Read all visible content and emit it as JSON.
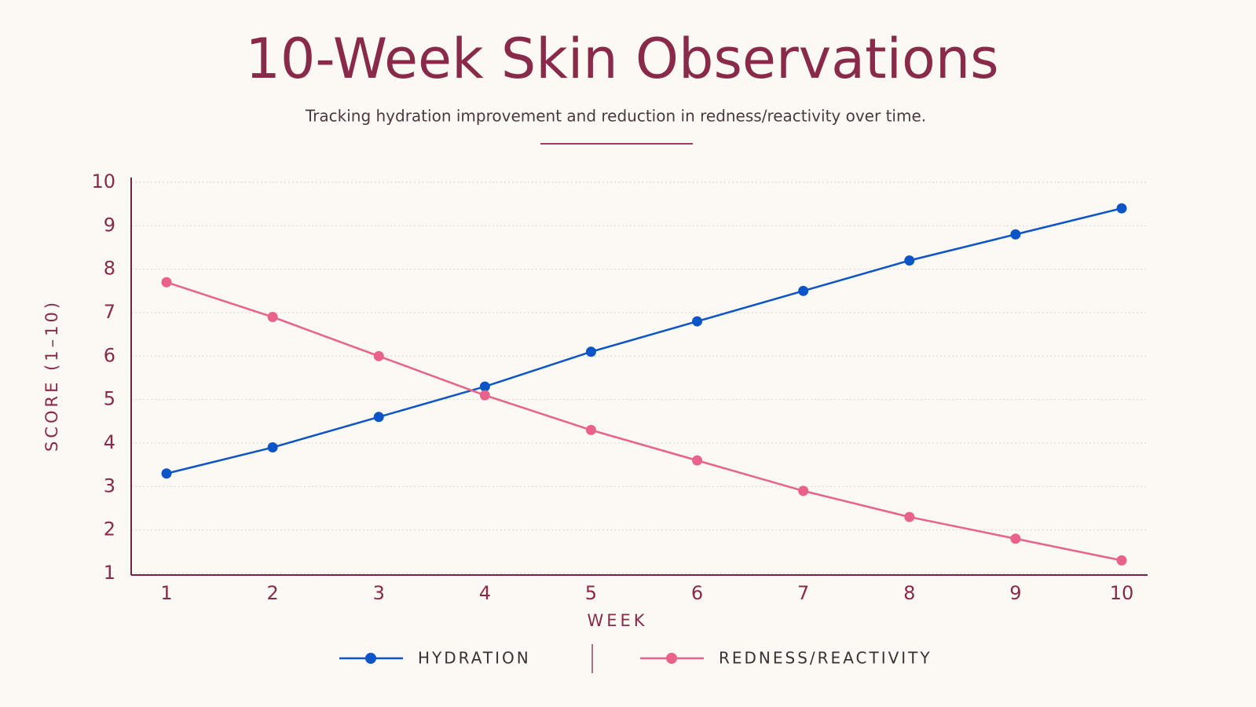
{
  "chart_data": {
    "type": "line",
    "title": "10-Week Skin Observations",
    "subtitle": "Tracking hydration improvement and reduction in redness/reactivity over time.",
    "x_label": "WEEK",
    "y_label": "SCORE (1–10)",
    "categories": [
      "1",
      "2",
      "3",
      "4",
      "5",
      "6",
      "7",
      "8",
      "9",
      "10"
    ],
    "series": [
      {
        "name": "HYDRATION",
        "color": "#0b55c8",
        "values": [
          3.3,
          3.9,
          4.6,
          5.3,
          6.1,
          6.8,
          7.5,
          8.2,
          8.8,
          9.4
        ]
      },
      {
        "name": "REDNESS/REACTIVITY",
        "color": "#e8628a",
        "values": [
          7.7,
          6.9,
          6.0,
          5.1,
          4.3,
          3.6,
          2.9,
          2.3,
          1.8,
          1.3
        ]
      }
    ],
    "ylim": [
      1,
      10
    ],
    "yticks": [
      1,
      2,
      3,
      4,
      5,
      6,
      7,
      8,
      9,
      10
    ],
    "grid": true,
    "legend": "bottom"
  }
}
